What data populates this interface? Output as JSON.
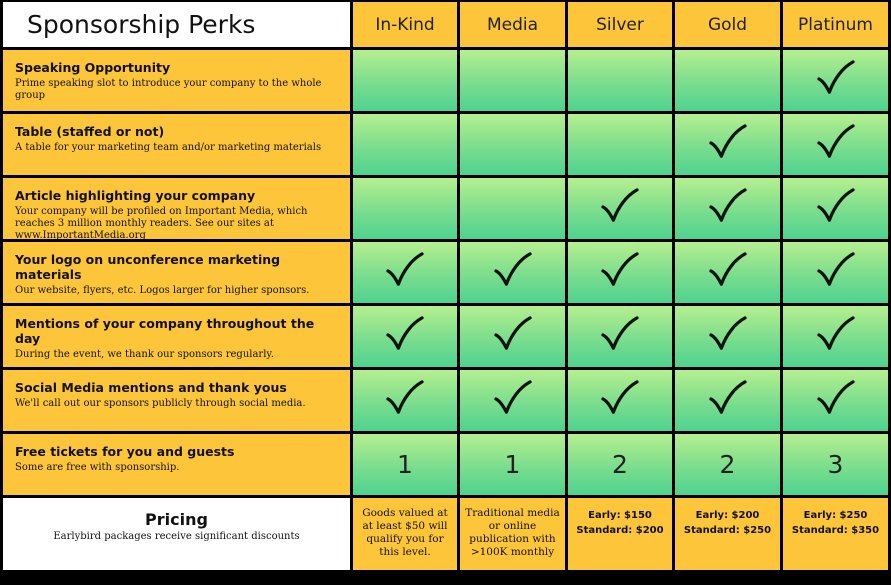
{
  "header": {
    "title": "Sponsorship Perks",
    "tiers": [
      "In-Kind",
      "Media",
      "Silver",
      "Gold",
      "Platinum"
    ]
  },
  "perks": [
    {
      "title": "Speaking Opportunity",
      "description": "Prime speaking slot to introduce your company to the whole group",
      "included": [
        false,
        false,
        false,
        false,
        true
      ]
    },
    {
      "title": "Table (staffed or not)",
      "description": "A table for your marketing team and/or marketing materials",
      "included": [
        false,
        false,
        false,
        true,
        true
      ]
    },
    {
      "title": "Article highlighting your company",
      "description": "Your company will be profiled on Important Media, which reaches 3 million monthly readers. See our sites at",
      "link": "www.ImportantMedia.org",
      "included": [
        false,
        false,
        true,
        true,
        true
      ]
    },
    {
      "title": "Your logo on unconference marketing materials",
      "description": "Our website, flyers, etc. Logos larger for higher sponsors.",
      "included": [
        true,
        true,
        true,
        true,
        true
      ]
    },
    {
      "title": "Mentions of your company throughout the day",
      "description": "During the event, we thank our sponsors regularly.",
      "included": [
        true,
        true,
        true,
        true,
        true
      ]
    },
    {
      "title": "Social Media mentions and thank yous",
      "description": "We'll call out our sponsors publicly through social media.",
      "included": [
        true,
        true,
        true,
        true,
        true
      ]
    },
    {
      "title": "Free tickets for you and guests",
      "description": "Some are free with sponsorship.",
      "tickets": [
        "1",
        "1",
        "2",
        "2",
        "3"
      ]
    }
  ],
  "pricing": {
    "title": "Pricing",
    "subtitle": "Earlybird packages receive significant discounts",
    "inkind": "Goods valued at at least $50 will qualify you for this level.",
    "media": "Traditional media or online publication with >100K monthly",
    "silver": {
      "early": "Early: $150",
      "standard": "Standard: $200"
    },
    "gold": {
      "early": "Early: $200",
      "standard": "Standard: $250"
    },
    "platinum": {
      "early": "Early: $250",
      "standard": "Standard: $350"
    }
  },
  "icons": {
    "included": "checkmark-icon"
  },
  "colors": {
    "tier_bg": "#fdc53a",
    "perk_green_top": "#b6ef8f",
    "perk_green_bottom": "#4ed28f"
  }
}
